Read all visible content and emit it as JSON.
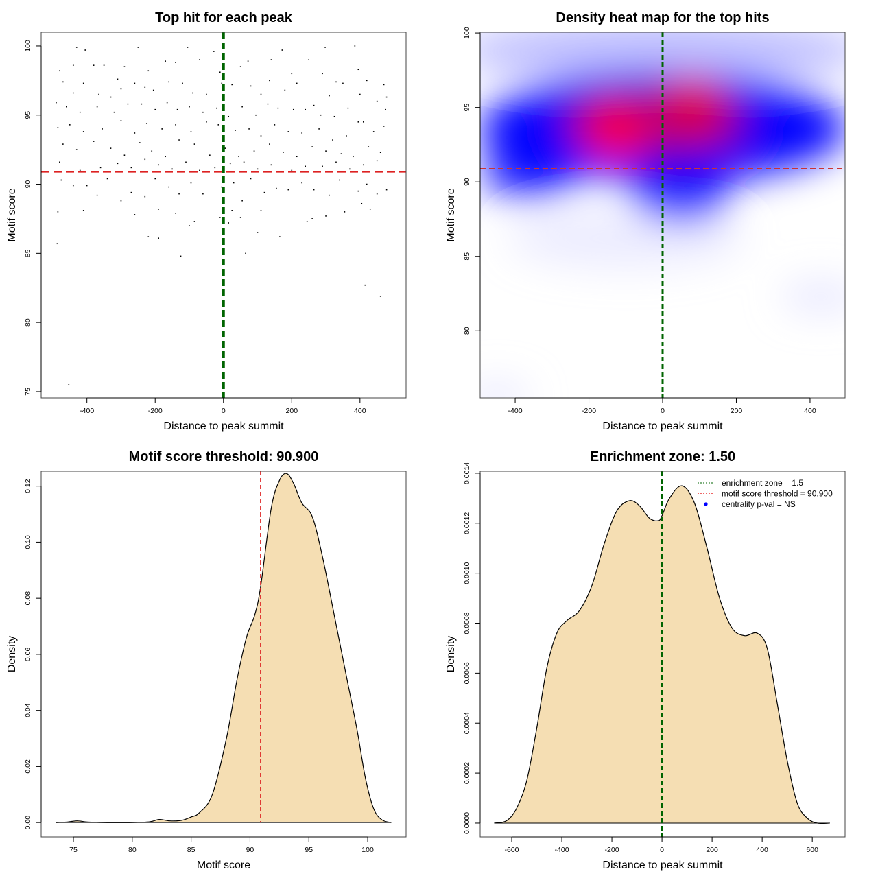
{
  "chart_data": [
    {
      "type": "scatter",
      "title": "Top hit for each peak",
      "xlabel": "Distance to peak summit",
      "ylabel": "Motif score",
      "xlim": [
        -534,
        535
      ],
      "ylim": [
        74.55,
        100.99
      ],
      "xticks": [
        -400,
        -200,
        0,
        200,
        400
      ],
      "xtick_labels": [
        "-400",
        "-200",
        "0",
        "200",
        "400"
      ],
      "yticks": [
        75,
        80,
        85,
        90,
        95,
        100
      ],
      "ytick_labels": [
        "75",
        "80",
        "85",
        "90",
        "95",
        "100"
      ],
      "threshold_y": 90.9,
      "center_x": 0,
      "colors": {
        "points": "#000000",
        "threshold": "#dd2222",
        "center": "#006400"
      },
      "points": [
        [
          -453,
          75.5
        ],
        [
          -487,
          85.7
        ],
        [
          415,
          82.7
        ],
        [
          460,
          81.9
        ],
        [
          -125,
          84.8
        ],
        [
          65,
          85
        ],
        [
          -220,
          86.2
        ],
        [
          -190,
          86.1
        ],
        [
          165,
          86.2
        ],
        [
          100,
          86.5
        ],
        [
          -430,
          99.9
        ],
        [
          -405,
          99.7
        ],
        [
          -250,
          99.9
        ],
        [
          -105,
          99.9
        ],
        [
          -28,
          99.6
        ],
        [
          172,
          99.7
        ],
        [
          298,
          99.9
        ],
        [
          385,
          100
        ],
        [
          -480,
          98.2
        ],
        [
          -440,
          98.6
        ],
        [
          -380,
          98.6
        ],
        [
          -350,
          98.6
        ],
        [
          -310,
          97.6
        ],
        [
          -290,
          98.5
        ],
        [
          -220,
          98.2
        ],
        [
          -170,
          98.9
        ],
        [
          -140,
          98.8
        ],
        [
          -70,
          99
        ],
        [
          -10,
          98.1
        ],
        [
          50,
          98.5
        ],
        [
          72,
          98.9
        ],
        [
          140,
          99
        ],
        [
          200,
          98
        ],
        [
          250,
          99
        ],
        [
          290,
          98
        ],
        [
          330,
          97.4
        ],
        [
          395,
          98.3
        ],
        [
          420,
          97.5
        ],
        [
          470,
          97.2
        ],
        [
          -470,
          97.4
        ],
        [
          -440,
          96.6
        ],
        [
          -410,
          97.3
        ],
        [
          -365,
          96.5
        ],
        [
          -330,
          96.3
        ],
        [
          -300,
          96.9
        ],
        [
          -260,
          97.3
        ],
        [
          -230,
          97
        ],
        [
          -205,
          96.8
        ],
        [
          -160,
          97.4
        ],
        [
          -120,
          97.3
        ],
        [
          -90,
          96.6
        ],
        [
          -50,
          96.5
        ],
        [
          -5,
          97.3
        ],
        [
          25,
          97.2
        ],
        [
          80,
          97.1
        ],
        [
          110,
          96.5
        ],
        [
          135,
          97.5
        ],
        [
          180,
          96.8
        ],
        [
          215,
          97.3
        ],
        [
          265,
          95.7
        ],
        [
          310,
          96.4
        ],
        [
          350,
          97.3
        ],
        [
          400,
          96.5
        ],
        [
          450,
          96.0
        ],
        [
          478,
          96.3
        ],
        [
          -490,
          95.9
        ],
        [
          -460,
          95.6
        ],
        [
          -420,
          95.2
        ],
        [
          -370,
          95.6
        ],
        [
          -320,
          95.2
        ],
        [
          -280,
          95.8
        ],
        [
          -240,
          95.8
        ],
        [
          -200,
          95.4
        ],
        [
          -165,
          95.9
        ],
        [
          -135,
          95.4
        ],
        [
          -100,
          95.6
        ],
        [
          -60,
          95.2
        ],
        [
          -20,
          95.5
        ],
        [
          15,
          94.9
        ],
        [
          55,
          95.6
        ],
        [
          95,
          95.0
        ],
        [
          130,
          95.8
        ],
        [
          160,
          95.5
        ],
        [
          205,
          95.4
        ],
        [
          240,
          95.4
        ],
        [
          285,
          95.0
        ],
        [
          325,
          94.9
        ],
        [
          365,
          95.5
        ],
        [
          410,
          94.5
        ],
        [
          475,
          95.4
        ],
        [
          -485,
          94.1
        ],
        [
          -450,
          94.3
        ],
        [
          -410,
          93.8
        ],
        [
          -355,
          94.0
        ],
        [
          -300,
          94.6
        ],
        [
          -260,
          93.7
        ],
        [
          -225,
          94.4
        ],
        [
          -180,
          94.0
        ],
        [
          -140,
          94.3
        ],
        [
          -95,
          93.8
        ],
        [
          -50,
          94.5
        ],
        [
          -15,
          94.3
        ],
        [
          35,
          93.9
        ],
        [
          75,
          94.0
        ],
        [
          110,
          93.5
        ],
        [
          150,
          94.3
        ],
        [
          190,
          93.8
        ],
        [
          230,
          93.7
        ],
        [
          280,
          94.0
        ],
        [
          320,
          93.2
        ],
        [
          360,
          93.5
        ],
        [
          395,
          94.5
        ],
        [
          440,
          93.8
        ],
        [
          470,
          94.2
        ],
        [
          -470,
          92.9
        ],
        [
          -430,
          92.5
        ],
        [
          -380,
          93.1
        ],
        [
          -330,
          92.6
        ],
        [
          -290,
          92.1
        ],
        [
          -245,
          93.0
        ],
        [
          -210,
          92.4
        ],
        [
          -170,
          92.0
        ],
        [
          -130,
          93.2
        ],
        [
          -85,
          92.9
        ],
        [
          -40,
          92.1
        ],
        [
          5,
          92.6
        ],
        [
          45,
          92.0
        ],
        [
          90,
          92.4
        ],
        [
          135,
          92.9
        ],
        [
          175,
          92.3
        ],
        [
          215,
          92.0
        ],
        [
          260,
          92.7
        ],
        [
          300,
          92.4
        ],
        [
          345,
          92.2
        ],
        [
          380,
          92.0
        ],
        [
          425,
          92.7
        ],
        [
          460,
          92.3
        ],
        [
          -480,
          91.6
        ],
        [
          -420,
          91.0
        ],
        [
          -360,
          91.2
        ],
        [
          -310,
          91.5
        ],
        [
          -270,
          91.2
        ],
        [
          -230,
          91.8
        ],
        [
          -190,
          91.4
        ],
        [
          -150,
          91.1
        ],
        [
          -110,
          91.6
        ],
        [
          -70,
          91.0
        ],
        [
          -25,
          91.2
        ],
        [
          20,
          91.5
        ],
        [
          60,
          91.6
        ],
        [
          100,
          91.1
        ],
        [
          140,
          91.4
        ],
        [
          200,
          91.0
        ],
        [
          240,
          91.3
        ],
        [
          290,
          91.3
        ],
        [
          330,
          91.6
        ],
        [
          370,
          91.1
        ],
        [
          410,
          91.4
        ],
        [
          450,
          91.7
        ],
        [
          -475,
          90.3
        ],
        [
          -440,
          89.9
        ],
        [
          -400,
          89.9
        ],
        [
          -370,
          89.2
        ],
        [
          -340,
          90.4
        ],
        [
          -300,
          88.8
        ],
        [
          -270,
          89.4
        ],
        [
          -230,
          89.1
        ],
        [
          -200,
          90.4
        ],
        [
          -160,
          89.8
        ],
        [
          -130,
          89.3
        ],
        [
          -95,
          90.1
        ],
        [
          -60,
          89.3
        ],
        [
          -5,
          89.8
        ],
        [
          30,
          90.1
        ],
        [
          55,
          88.8
        ],
        [
          80,
          90.4
        ],
        [
          120,
          89.4
        ],
        [
          155,
          89.7
        ],
        [
          190,
          89.6
        ],
        [
          230,
          90.1
        ],
        [
          265,
          89.6
        ],
        [
          310,
          89.2
        ],
        [
          340,
          90.3
        ],
        [
          395,
          89.5
        ],
        [
          420,
          90.0
        ],
        [
          450,
          89.3
        ],
        [
          478,
          89.6
        ],
        [
          -485,
          88.0
        ],
        [
          -410,
          88.1
        ],
        [
          -260,
          87.8
        ],
        [
          -190,
          88.2
        ],
        [
          -140,
          87.9
        ],
        [
          -85,
          87.3
        ],
        [
          -10,
          87.6
        ],
        [
          25,
          88.1
        ],
        [
          50,
          87.6
        ],
        [
          110,
          88.1
        ],
        [
          245,
          87.3
        ],
        [
          300,
          87.7
        ],
        [
          355,
          88.0
        ],
        [
          -100,
          87.0
        ],
        [
          15,
          87.2
        ],
        [
          260,
          87.5
        ],
        [
          405,
          88.6
        ],
        [
          430,
          88.2
        ]
      ]
    },
    {
      "type": "heatmap",
      "title": "Density heat map for the top hits",
      "xlabel": "Distance to peak summit",
      "ylabel": "Motif score",
      "xlim": [
        -495,
        495
      ],
      "ylim": [
        75.5,
        100.05
      ],
      "xticks": [
        -400,
        -200,
        0,
        200,
        400
      ],
      "xtick_labels": [
        "-400",
        "-200",
        "0",
        "200",
        "400"
      ],
      "yticks": [
        80,
        85,
        90,
        95,
        100
      ],
      "ytick_labels": [
        "80",
        "85",
        "90",
        "95",
        "100"
      ],
      "threshold_y": 90.9,
      "center_x": 0,
      "colors": {
        "low": "#ffffff",
        "mid": "#0000ff",
        "high": "#ff0000",
        "threshold": "#cc3333",
        "center": "#006400"
      },
      "density_blobs": [
        {
          "x": 0,
          "y": 98.8,
          "sx": 560,
          "sy": 2.2,
          "color": "#8a8aff",
          "level": 0.55
        },
        {
          "x": 0,
          "y": 93.6,
          "sx": 500,
          "sy": 3.6,
          "color": "#0000ff",
          "level": 1
        },
        {
          "x": -360,
          "y": 90.6,
          "sx": 130,
          "sy": 1.6,
          "color": "#0000ff",
          "level": 0.9
        },
        {
          "x": 50,
          "y": 89.3,
          "sx": 130,
          "sy": 1.9,
          "color": "#0000ff",
          "level": 0.9
        },
        {
          "x": -100,
          "y": 86.2,
          "sx": 320,
          "sy": 2.0,
          "color": "#c8c8ff",
          "level": 0.35
        },
        {
          "x": 430,
          "y": 82.3,
          "sx": 110,
          "sy": 1.1,
          "color": "#d8d8ff",
          "level": 0.6
        },
        {
          "x": -450,
          "y": 75.6,
          "sx": 90,
          "sy": 1.0,
          "color": "#dcdcff",
          "level": 0.6
        },
        {
          "x": -20,
          "y": 94.0,
          "sx": 260,
          "sy": 2.4,
          "color": "#8a0090",
          "level": 0.8
        },
        {
          "x": -125,
          "y": 93.5,
          "sx": 95,
          "sy": 1.8,
          "color": "#ff0000",
          "level": 1
        },
        {
          "x": 80,
          "y": 94.8,
          "sx": 100,
          "sy": 2.0,
          "color": "#e00030",
          "level": 1
        }
      ]
    },
    {
      "type": "area",
      "title": "Motif score threshold: 90.900",
      "xlabel": "Motif score",
      "ylabel": "Density",
      "xlim": [
        72.26,
        103.26
      ],
      "ylim": [
        -0.0051,
        0.1253
      ],
      "xticks": [
        75,
        80,
        85,
        90,
        95,
        100
      ],
      "xtick_labels": [
        "75",
        "80",
        "85",
        "90",
        "95",
        "100"
      ],
      "yticks": [
        0,
        0.02,
        0.04,
        0.06,
        0.08,
        0.1,
        0.12
      ],
      "ytick_labels": [
        "0.00",
        "0.02",
        "0.04",
        "0.06",
        "0.08",
        "0.10",
        "0.12"
      ],
      "threshold_x": 90.9,
      "colors": {
        "fill": "#f5deb3",
        "line": "#000000",
        "threshold": "#dd2222"
      },
      "x": [
        73.5,
        74.5,
        75.3,
        76.2,
        77.5,
        80,
        81.5,
        82.3,
        83.2,
        84.2,
        85,
        85.7,
        86.8,
        88.0,
        88.9,
        89.7,
        90.4,
        90.9,
        91.8,
        92.5,
        93.1,
        93.7,
        94.4,
        95.3,
        96.2,
        97.3,
        98.2,
        99.1,
        99.8,
        100.5,
        101.2,
        102
      ],
      "y": [
        0,
        0.0002,
        0.0006,
        0.0002,
        0,
        0,
        0.0003,
        0.0011,
        0.0006,
        0.0008,
        0.002,
        0.0035,
        0.01,
        0.03,
        0.051,
        0.066,
        0.074,
        0.084,
        0.112,
        0.122,
        0.1245,
        0.121,
        0.114,
        0.109,
        0.094,
        0.071,
        0.052,
        0.033,
        0.016,
        0.005,
        0.001,
        0
      ]
    },
    {
      "type": "area",
      "title": "Enrichment zone: 1.50",
      "xlabel": "Distance to peak summit",
      "ylabel": "Density",
      "xlim": [
        -726,
        731
      ],
      "ylim": [
        -5.5e-05,
        0.001408
      ],
      "xticks": [
        -600,
        -400,
        -200,
        0,
        200,
        400,
        600
      ],
      "xtick_labels": [
        "-600",
        "-400",
        "-200",
        "0",
        "200",
        "400",
        "600"
      ],
      "yticks": [
        0,
        0.0002,
        0.0004,
        0.0006,
        0.0008,
        0.001,
        0.0012,
        0.0014
      ],
      "ytick_labels": [
        "0.0000",
        "0.0002",
        "0.0004",
        "0.0006",
        "0.0008",
        "0.0010",
        "0.0012",
        "0.0014"
      ],
      "center_x": 0,
      "colors": {
        "fill": "#f5deb3",
        "line": "#000000",
        "center": "#006400"
      },
      "x": [
        -670,
        -620,
        -580,
        -540,
        -500,
        -460,
        -420,
        -380,
        -330,
        -280,
        -230,
        -180,
        -130,
        -90,
        -50,
        -15,
        0,
        30,
        80,
        130,
        180,
        230,
        280,
        330,
        380,
        420,
        460,
        500,
        540,
        580,
        620,
        670
      ],
      "y": [
        0,
        1e-05,
        6e-05,
        0.00017,
        0.00038,
        0.00062,
        0.00076,
        0.00081,
        0.00085,
        0.00095,
        0.00112,
        0.00125,
        0.00129,
        0.00127,
        0.00122,
        0.00121,
        0.00123,
        0.0013,
        0.00135,
        0.00128,
        0.0011,
        0.0009,
        0.00078,
        0.00075,
        0.00076,
        0.0007,
        0.00048,
        0.00025,
        8e-05,
        2e-05,
        0,
        0
      ],
      "legend": {
        "placement": "top-right",
        "entries": [
          {
            "label": "enrichment zone = 1.5",
            "style": "dotted",
            "color": "#006400"
          },
          {
            "label": "motif score threshold = 90.900",
            "style": "dotted",
            "color": "#ee6666"
          },
          {
            "label": "centrality p-val = NS",
            "style": "point",
            "color": "#0000ff"
          }
        ]
      }
    }
  ]
}
